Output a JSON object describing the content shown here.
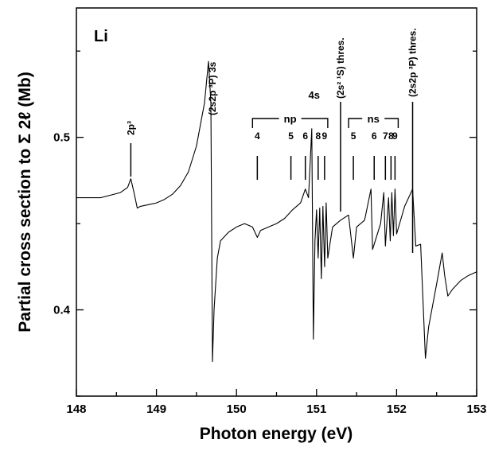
{
  "chart_data": {
    "type": "line",
    "panel_label": "Li",
    "xlabel": "Photon energy (eV)",
    "ylabel": "Partial cross section to Σ 2ℓ (Mb)",
    "xlim": [
      148,
      153
    ],
    "ylim": [
      0.35,
      0.575
    ],
    "x_ticks": [
      148,
      149,
      150,
      151,
      152,
      153
    ],
    "x_tick_labels": [
      "148",
      "149",
      "150",
      "151",
      "152",
      "153"
    ],
    "y_ticks": [
      0.4,
      0.5
    ],
    "y_tick_labels": [
      "0.4",
      "0.5"
    ],
    "grid": false,
    "series": [
      {
        "x": [
          148.0,
          148.3,
          148.55,
          148.64,
          148.68,
          148.72,
          148.76,
          148.8,
          148.9,
          149.0,
          149.1,
          149.2,
          149.3,
          149.4,
          149.5,
          149.6,
          149.65,
          149.68,
          149.7,
          149.72,
          149.76,
          149.8,
          149.9,
          150.0,
          150.1,
          150.2,
          150.26,
          150.3,
          150.4,
          150.5,
          150.6,
          150.7,
          150.8,
          150.86,
          150.9,
          150.94,
          150.96,
          150.98,
          151.0,
          151.02,
          151.04,
          151.06,
          151.08,
          151.1,
          151.12,
          151.14,
          151.2,
          151.3,
          151.4,
          151.46,
          151.5,
          151.6,
          151.68,
          151.7,
          151.8,
          151.84,
          151.86,
          151.9,
          151.92,
          151.94,
          151.96,
          151.98,
          152.0,
          152.1,
          152.2,
          152.24,
          152.3,
          152.33,
          152.36,
          152.4,
          152.5,
          152.57,
          152.6,
          152.64,
          152.7,
          152.8,
          152.9,
          153.0
        ],
        "y": [
          0.465,
          0.465,
          0.468,
          0.471,
          0.476,
          0.468,
          0.459,
          0.46,
          0.461,
          0.462,
          0.464,
          0.467,
          0.472,
          0.48,
          0.495,
          0.52,
          0.544,
          0.52,
          0.37,
          0.4,
          0.43,
          0.44,
          0.445,
          0.448,
          0.45,
          0.448,
          0.442,
          0.446,
          0.448,
          0.45,
          0.453,
          0.458,
          0.462,
          0.47,
          0.465,
          0.505,
          0.383,
          0.44,
          0.458,
          0.43,
          0.459,
          0.418,
          0.46,
          0.425,
          0.462,
          0.43,
          0.448,
          0.452,
          0.455,
          0.43,
          0.448,
          0.452,
          0.47,
          0.435,
          0.45,
          0.468,
          0.437,
          0.465,
          0.44,
          0.468,
          0.443,
          0.47,
          0.444,
          0.46,
          0.47,
          0.437,
          0.438,
          0.405,
          0.372,
          0.39,
          0.415,
          0.433,
          0.42,
          0.408,
          0.412,
          0.417,
          0.42,
          0.422
        ]
      }
    ],
    "annotations": [
      {
        "text": "2p³",
        "x": 148.68
      },
      {
        "text": "(2s2p ³P) 3s",
        "x": 149.7
      },
      {
        "text": "4s",
        "x": 150.96
      },
      {
        "text": "(2s² ¹S) thres.",
        "x": 151.3
      },
      {
        "text": "(2s2p ³P) thres.",
        "x": 152.2
      }
    ],
    "np_group": {
      "label": "np",
      "labels": [
        "4",
        "5",
        "6",
        "8",
        "9"
      ],
      "positions": [
        150.26,
        150.68,
        150.86,
        151.02,
        151.1
      ]
    },
    "ns_group": {
      "label": "ns",
      "labels": [
        "5",
        "6",
        "7",
        "8",
        "9"
      ],
      "positions": [
        151.46,
        151.72,
        151.86,
        151.93,
        151.98
      ]
    }
  }
}
